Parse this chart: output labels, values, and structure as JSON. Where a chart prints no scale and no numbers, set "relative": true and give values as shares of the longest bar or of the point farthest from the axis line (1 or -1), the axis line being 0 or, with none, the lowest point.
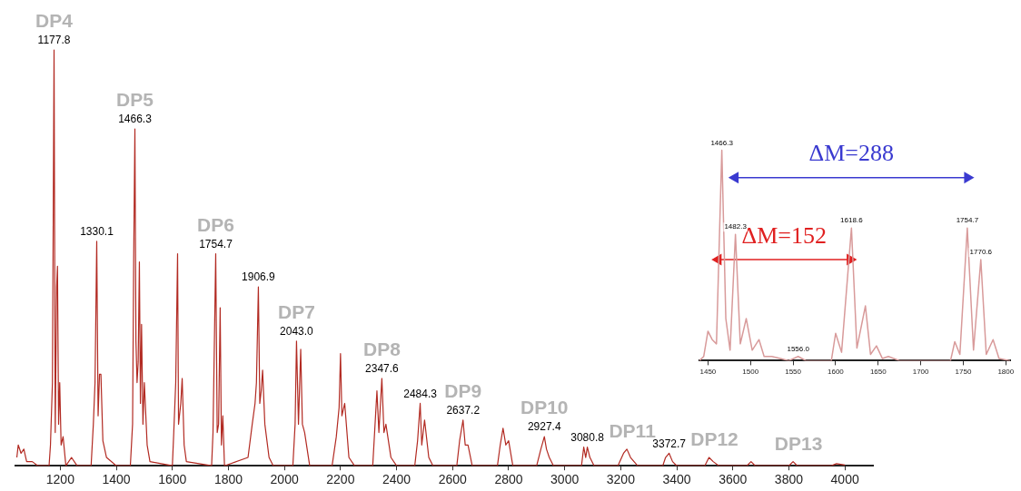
{
  "chart_data": [
    {
      "type": "line",
      "relative": true,
      "grid": false,
      "legend": false,
      "xlim": [
        1040,
        4100
      ],
      "xticks": [
        1200,
        1400,
        1600,
        1800,
        2000,
        2200,
        2400,
        2600,
        2800,
        3000,
        3200,
        3400,
        3600,
        3800,
        4000
      ],
      "series": [
        {
          "color": "#b22a22",
          "marker": "none",
          "x": [
            1045,
            1050,
            1060,
            1070,
            1080,
            1100,
            1120,
            1160,
            1165,
            1172,
            1177.8,
            1182,
            1187,
            1190,
            1194,
            1198,
            1203,
            1210,
            1220,
            1240,
            1260,
            1310,
            1318,
            1324,
            1330.1,
            1335,
            1340,
            1345,
            1352,
            1365,
            1400,
            1450,
            1458,
            1462,
            1466.3,
            1470,
            1474,
            1478,
            1482.3,
            1486,
            1490,
            1495,
            1500,
            1510,
            1520,
            1600,
            1605,
            1612,
            1618.6,
            1622,
            1630,
            1635,
            1642,
            1650,
            1740,
            1745,
            1750,
            1754.7,
            1760,
            1765,
            1770.6,
            1775,
            1780,
            1786,
            1870,
            1885,
            1895,
            1900,
            1906.9,
            1912,
            1917,
            1922,
            1930,
            1945,
            1960,
            2030,
            2038,
            2043.0,
            2050,
            2058,
            2064,
            2072,
            2090,
            2170,
            2185,
            2195,
            2200,
            2205,
            2215,
            2230,
            2250,
            2315,
            2330,
            2337,
            2347.6,
            2355,
            2362,
            2380,
            2400,
            2465,
            2475,
            2484.3,
            2490,
            2500,
            2515,
            2530,
            2615,
            2625,
            2637.2,
            2645,
            2655,
            2670,
            2760,
            2770,
            2780,
            2790,
            2800,
            2815,
            2900,
            2915,
            2927.4,
            2935,
            2945,
            2960,
            3060,
            3068,
            3075,
            3080.8,
            3090,
            3105,
            3190,
            3210,
            3222,
            3235,
            3260,
            3350,
            3360,
            3372.7,
            3385,
            3400,
            3500,
            3515,
            3530,
            3550,
            3650,
            3665,
            3680,
            3800,
            3815,
            3830,
            3950,
            3970,
            4000
          ],
          "values": [
            0.02,
            0.05,
            0.03,
            0.04,
            0.01,
            0.01,
            0,
            0,
            0.05,
            0.2,
            1,
            0.08,
            0.43,
            0.48,
            0.1,
            0.2,
            0.05,
            0.07,
            0,
            0.02,
            0,
            0,
            0.1,
            0.2,
            0.54,
            0.12,
            0.22,
            0.22,
            0.06,
            0.02,
            0,
            0,
            0.1,
            0.5,
            0.81,
            0.3,
            0.2,
            0.25,
            0.49,
            0.15,
            0.34,
            0.1,
            0.2,
            0.05,
            0.01,
            0,
            0.08,
            0.2,
            0.51,
            0.1,
            0.15,
            0.21,
            0.05,
            0.01,
            0,
            0.08,
            0.3,
            0.51,
            0.08,
            0.1,
            0.38,
            0.05,
            0.12,
            0,
            0.02,
            0.1,
            0.15,
            0.2,
            0.43,
            0.15,
            0.18,
            0.23,
            0.1,
            0.02,
            0,
            0,
            0.1,
            0.3,
            0.1,
            0.28,
            0.1,
            0.08,
            0,
            0,
            0.07,
            0.14,
            0.27,
            0.12,
            0.15,
            0.02,
            0,
            0,
            0.18,
            0.08,
            0.21,
            0.08,
            0.1,
            0.02,
            0,
            0,
            0.06,
            0.15,
            0.05,
            0.11,
            0.02,
            0,
            0,
            0.06,
            0.11,
            0.05,
            0.05,
            0,
            0,
            0.05,
            0.09,
            0.05,
            0.06,
            0,
            0,
            0.04,
            0.07,
            0.04,
            0.02,
            0,
            0,
            0.045,
            0.02,
            0.045,
            0.02,
            0,
            0,
            0.03,
            0.04,
            0.02,
            0,
            0,
            0.02,
            0.03,
            0.01,
            0,
            0,
            0.02,
            0.01,
            0,
            0,
            0.01,
            0,
            0,
            0.01,
            0,
            0,
            0.005,
            0.002
          ]
        }
      ],
      "annotations": [
        {
          "text": "1177.8",
          "x": 1177.8,
          "y": 1
        },
        {
          "text": "1330.1",
          "x": 1330.1,
          "y": 0.54
        },
        {
          "text": "1466.3",
          "x": 1466.3,
          "y": 0.81
        },
        {
          "text": "1754.7",
          "x": 1754.7,
          "y": 0.51
        },
        {
          "text": "1906.9",
          "x": 1906.9,
          "y": 0.43
        },
        {
          "text": "2043.0",
          "x": 2043.0,
          "y": 0.3
        },
        {
          "text": "2347.6",
          "x": 2347.6,
          "y": 0.21
        },
        {
          "text": "2484.3",
          "x": 2484.3,
          "y": 0.15
        },
        {
          "text": "2637.2",
          "x": 2637.2,
          "y": 0.11
        },
        {
          "text": "2927.4",
          "x": 2927.4,
          "y": 0.07
        },
        {
          "text": "3080.8",
          "x": 3080.8,
          "y": 0.045
        },
        {
          "text": "3372.7",
          "x": 3372.7,
          "y": 0.03
        },
        {
          "text": "DP4",
          "x": 1177.8,
          "y": 1
        },
        {
          "text": "DP5",
          "x": 1466.3,
          "y": 0.81
        },
        {
          "text": "DP6",
          "x": 1754.7,
          "y": 0.51
        },
        {
          "text": "DP7",
          "x": 2043.0,
          "y": 0.3
        },
        {
          "text": "DP8",
          "x": 2347.6,
          "y": 0.21
        },
        {
          "text": "DP9",
          "x": 2637.2,
          "y": 0.11
        },
        {
          "text": "DP10",
          "x": 2927.4,
          "y": 0.07
        },
        {
          "text": "DP11",
          "x": 3222,
          "y": 0.04
        },
        {
          "text": "DP12",
          "x": 3515,
          "y": 0.02
        },
        {
          "text": "DP13",
          "x": 3815,
          "y": 0.01
        }
      ]
    },
    {
      "type": "line",
      "relative": true,
      "grid": false,
      "legend": false,
      "xlim": [
        1440,
        1805
      ],
      "xticks": [
        1450,
        1500,
        1550,
        1600,
        1650,
        1700,
        1750,
        1800
      ],
      "series": [
        {
          "color": "#d89a9a",
          "marker": "none",
          "x": [
            1440,
            1445,
            1450,
            1455,
            1460,
            1466.3,
            1471,
            1476,
            1482.3,
            1488,
            1495,
            1502,
            1510,
            1516,
            1525,
            1535,
            1545,
            1556.0,
            1565,
            1595,
            1600,
            1607,
            1618.6,
            1625,
            1635,
            1641,
            1648,
            1655,
            1662,
            1675,
            1735,
            1740,
            1746,
            1754.7,
            1762,
            1770.6,
            1777,
            1785,
            1792,
            1805
          ],
          "values": [
            0,
            0.02,
            0.14,
            0.1,
            0.08,
            1,
            0.2,
            0.05,
            0.6,
            0.08,
            0.2,
            0.05,
            0.1,
            0.02,
            0.02,
            0.01,
            0,
            0.02,
            0,
            0,
            0.13,
            0.04,
            0.63,
            0.06,
            0.26,
            0.03,
            0.07,
            0.01,
            0.02,
            0,
            0,
            0.09,
            0.03,
            0.63,
            0.05,
            0.48,
            0.03,
            0.1,
            0.01,
            0
          ]
        },
        {
          "type": "line",
          "name": "ΔM=288",
          "color": "#3a3ad0",
          "marker": "triangle",
          "x": [
            1482,
            1755
          ],
          "values": [
            0.87,
            0.87
          ]
        },
        {
          "type": "line",
          "name": "ΔM=152",
          "color": "#e02020",
          "marker": "triangle",
          "x": [
            1462,
            1617
          ],
          "values": [
            0.48,
            0.48
          ]
        }
      ],
      "annotations": [
        {
          "text": "1466.3",
          "x": 1466.3,
          "y": 1
        },
        {
          "text": "1482.3",
          "x": 1482.3,
          "y": 0.6
        },
        {
          "text": "1556.0",
          "x": 1556.0,
          "y": 0.02
        },
        {
          "text": "1618.6",
          "x": 1618.6,
          "y": 0.63
        },
        {
          "text": "1754.7",
          "x": 1754.7,
          "y": 0.63
        },
        {
          "text": "1770.6",
          "x": 1770.6,
          "y": 0.48
        }
      ]
    }
  ]
}
